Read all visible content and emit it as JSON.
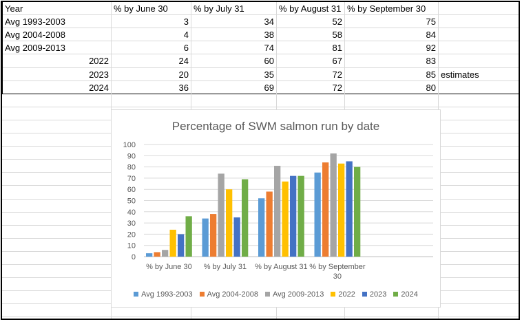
{
  "table": {
    "headers": [
      "Year",
      "% by June 30",
      "% by July 31",
      "% by August 31",
      "% by September 30"
    ],
    "rows": [
      {
        "year": "Avg 1993-2003",
        "values": [
          "3",
          "34",
          "52",
          "75"
        ],
        "note": ""
      },
      {
        "year": "Avg 2004-2008",
        "values": [
          "4",
          "38",
          "58",
          "84"
        ],
        "note": ""
      },
      {
        "year": "Avg 2009-2013",
        "values": [
          "6",
          "74",
          "81",
          "92"
        ],
        "note": ""
      },
      {
        "year": "2022",
        "values": [
          "24",
          "60",
          "67",
          "83"
        ],
        "note": ""
      },
      {
        "year": "2023",
        "values": [
          "20",
          "35",
          "72",
          "85"
        ],
        "note": "estimates"
      },
      {
        "year": "2024",
        "values": [
          "36",
          "69",
          "72",
          "80"
        ],
        "note": ""
      }
    ]
  },
  "chart_data": {
    "type": "bar",
    "title": "Percentage of SWM salmon run by date",
    "categories": [
      "% by June 30",
      "% by July 31",
      "% by August 31",
      "% by September 30"
    ],
    "category_label_lines": [
      [
        "% by June 30"
      ],
      [
        "% by July 31"
      ],
      [
        "% by August 31"
      ],
      [
        "% by September",
        "30"
      ]
    ],
    "series": [
      {
        "name": "Avg 1993-2003",
        "values": [
          3,
          34,
          52,
          75
        ],
        "color": "#5b9bd5"
      },
      {
        "name": "Avg 2004-2008",
        "values": [
          4,
          38,
          58,
          84
        ],
        "color": "#ed7d31"
      },
      {
        "name": "Avg 2009-2013",
        "values": [
          6,
          74,
          81,
          92
        ],
        "color": "#a5a5a5"
      },
      {
        "name": "2022",
        "values": [
          24,
          60,
          67,
          83
        ],
        "color": "#ffc000"
      },
      {
        "name": "2023",
        "values": [
          20,
          35,
          72,
          85
        ],
        "color": "#4472c4"
      },
      {
        "name": "2024",
        "values": [
          36,
          69,
          72,
          80
        ],
        "color": "#70ad47"
      }
    ],
    "ylim": [
      0,
      100
    ],
    "yticks": [
      0,
      10,
      20,
      30,
      40,
      50,
      60,
      70,
      80,
      90,
      100
    ],
    "grid": true,
    "legend_position": "bottom",
    "xlabel": "",
    "ylabel": ""
  }
}
